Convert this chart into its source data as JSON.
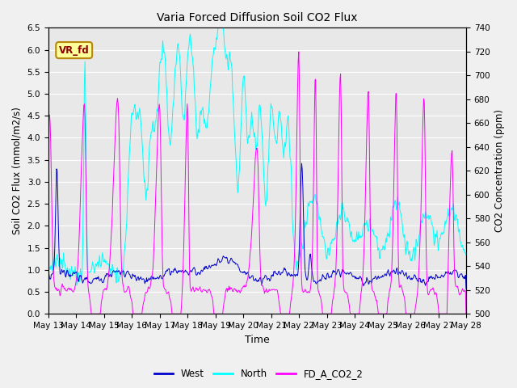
{
  "title": "Varia Forced Diffusion Soil CO2 Flux",
  "xlabel": "Time",
  "ylabel_left": "Soil CO2 Flux (mmol/m2/s)",
  "ylabel_right": "CO2 Concentration (ppm)",
  "ylim_left": [
    0.0,
    6.5
  ],
  "ylim_right": [
    500,
    740
  ],
  "yticks_left": [
    0.0,
    0.5,
    1.0,
    1.5,
    2.0,
    2.5,
    3.0,
    3.5,
    4.0,
    4.5,
    5.0,
    5.5,
    6.0,
    6.5
  ],
  "yticks_right": [
    500,
    520,
    540,
    560,
    580,
    600,
    620,
    640,
    660,
    680,
    700,
    720,
    740
  ],
  "xtick_labels": [
    "May 13",
    "May 14",
    "May 15",
    "May 16",
    "May 17",
    "May 18",
    "May 19",
    "May 20",
    "May 21",
    "May 22",
    "May 23",
    "May 24",
    "May 25",
    "May 26",
    "May 27",
    "May 28"
  ],
  "color_west": "#0000CD",
  "color_north": "#00FFFF",
  "color_fd": "#FF00FF",
  "fig_bg_color": "#f0f0f0",
  "plot_bg_color": "#e8e8e8",
  "grid_color": "#ffffff",
  "annotation_text": "VR_fd",
  "annotation_color": "#8B0000",
  "annotation_bg": "#FFFF99",
  "annotation_border": "#B8860B",
  "legend_labels": [
    "West",
    "North",
    "FD_A_CO2_2"
  ],
  "n_days": 15,
  "n_per_day": 48,
  "seed": 42
}
